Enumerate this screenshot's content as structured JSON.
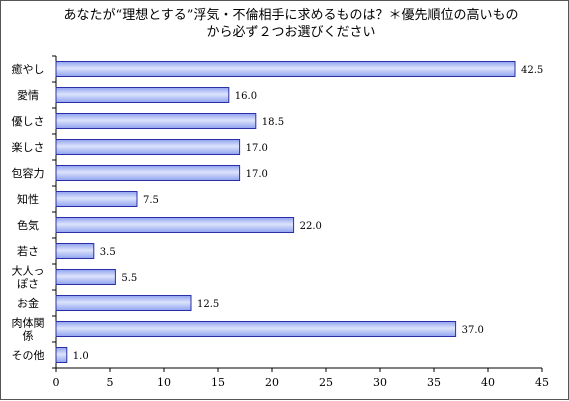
{
  "chart_data": {
    "type": "bar",
    "orientation": "horizontal",
    "title": "あなたが“理想とする”浮気・不倫相手に求めるものは？＊優先順位の高いものから必ず２つお選びください",
    "title_lines": [
      "あなたが“理想とする”浮気・不倫相手に求めるものは？＊優先順位の高いもの",
      "から必ず２つお選びください"
    ],
    "categories": [
      "癒やし",
      "愛情",
      "優しさ",
      "楽しさ",
      "包容力",
      "知性",
      "色気",
      "若さ",
      "大人っぽさ",
      "お金",
      "肉体関係",
      "その他"
    ],
    "category_label_lines": [
      [
        "癒やし"
      ],
      [
        "愛情"
      ],
      [
        "優しさ"
      ],
      [
        "楽しさ"
      ],
      [
        "包容力"
      ],
      [
        "知性"
      ],
      [
        "色気"
      ],
      [
        "若さ"
      ],
      [
        "大人っ",
        "ぽさ"
      ],
      [
        "お金"
      ],
      [
        "肉体関",
        "係"
      ],
      [
        "その他"
      ]
    ],
    "values": [
      42.5,
      16.0,
      18.5,
      17.0,
      17.0,
      7.5,
      22.0,
      3.5,
      5.5,
      12.5,
      37.0,
      1.0
    ],
    "value_labels": [
      "42.5",
      "16.0",
      "18.5",
      "17.0",
      "17.0",
      "7.5",
      "22.0",
      "3.5",
      "5.5",
      "12.5",
      "37.0",
      "1.0"
    ],
    "xlim": [
      0,
      45
    ],
    "x_ticks": [
      "0",
      "5",
      "10",
      "15",
      "20",
      "25",
      "30",
      "35",
      "40",
      "45"
    ],
    "xlabel": "",
    "ylabel": "",
    "grid": false,
    "legend": "none",
    "bar_color": "#8fa2ef",
    "bar_highlight": "#dde3fb",
    "bar_edge": "#2b2fa6"
  }
}
